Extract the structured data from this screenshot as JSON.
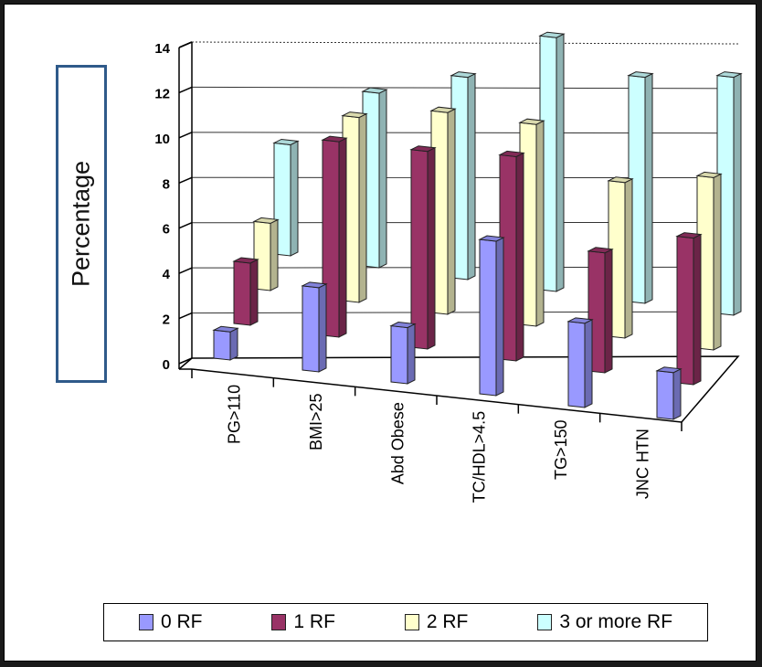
{
  "chart_data": {
    "type": "bar",
    "title": "",
    "xlabel": "",
    "ylabel": "Percentage",
    "ylim": [
      0,
      14
    ],
    "yticks": [
      0,
      2,
      4,
      6,
      8,
      10,
      12,
      14
    ],
    "grid": true,
    "legend_position": "bottom",
    "categories": [
      "PG>110",
      "BMI>25",
      "Abd Obese",
      "TC/HDL>4.5",
      "TG>150",
      "JNC HTN"
    ],
    "series": [
      {
        "name": "0 RF",
        "color": "#9999ff",
        "values": [
          1.2,
          3.6,
          2.4,
          6.6,
          3.6,
          2.0
        ]
      },
      {
        "name": "1 RF",
        "color": "#993366",
        "values": [
          2.8,
          8.8,
          8.9,
          9.2,
          5.4,
          6.6
        ]
      },
      {
        "name": "2 RF",
        "color": "#ffffcc",
        "values": [
          3.2,
          8.8,
          9.6,
          9.6,
          7.4,
          8.2
        ]
      },
      {
        "name": "3 or more RF",
        "color": "#ccffff",
        "values": [
          5.6,
          8.8,
          10.2,
          12.8,
          11.4,
          12.0
        ]
      }
    ]
  }
}
